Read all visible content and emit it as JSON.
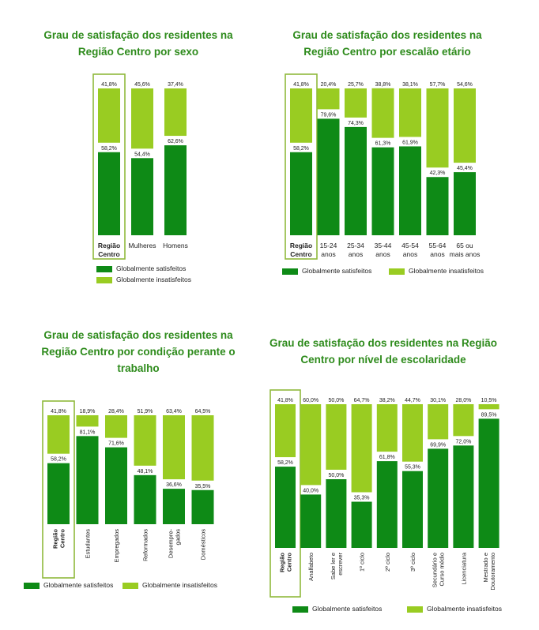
{
  "colors": {
    "satisfied": "#0e8a16",
    "unsatisfied": "#99cc22",
    "highlight_border": "#8fb93c",
    "title": "#2e8b1c"
  },
  "legend": {
    "satisfied": "Globalmente satisfeitos",
    "unsatisfied": "Globalmente insatisfeitos"
  },
  "chart_data": [
    {
      "type": "bar",
      "stacked": true,
      "title_lines": [
        "Grau de satisfação dos residentes na",
        "Região Centro por sexo"
      ],
      "categories": [
        [
          "Região",
          "Centro"
        ],
        [
          "Mulheres"
        ],
        [
          "Homens"
        ]
      ],
      "highlight_first": true,
      "series": [
        {
          "name": "Globalmente satisfeitos",
          "values": [
            58.2,
            54.4,
            62.6
          ],
          "labels": [
            "58,2%",
            "54,4%",
            "62,6%"
          ]
        },
        {
          "name": "Globalmente insatisfeitos",
          "values": [
            41.8,
            45.6,
            37.4
          ],
          "labels": [
            "41,8%",
            "45,6%",
            "37,4%"
          ]
        }
      ],
      "ylim": [
        0,
        100
      ]
    },
    {
      "type": "bar",
      "stacked": true,
      "title_lines": [
        "Grau de satisfação dos residentes na",
        "Região Centro por escalão etário"
      ],
      "categories": [
        [
          "Região",
          "Centro"
        ],
        [
          "15-24",
          "anos"
        ],
        [
          "25-34",
          "anos"
        ],
        [
          "35-44",
          "anos"
        ],
        [
          "45-54",
          "anos"
        ],
        [
          "55-64",
          "anos"
        ],
        [
          "65 ou",
          "mais anos"
        ]
      ],
      "highlight_first": true,
      "series": [
        {
          "name": "Globalmente satisfeitos",
          "values": [
            58.2,
            79.6,
            74.3,
            61.3,
            61.9,
            42.3,
            45.4
          ],
          "labels": [
            "58,2%",
            "79,6%",
            "74,3%",
            "61,3%",
            "61,9%",
            "42,3%",
            "45,4%"
          ]
        },
        {
          "name": "Globalmente insatisfeitos",
          "values": [
            41.8,
            20.4,
            25.7,
            38.8,
            38.1,
            57.7,
            54.6
          ],
          "labels": [
            "41,8%",
            "20,4%",
            "25,7%",
            "38,8%",
            "38,1%",
            "57,7%",
            "54,6%"
          ]
        }
      ],
      "ylim": [
        0,
        100
      ]
    },
    {
      "type": "bar",
      "stacked": true,
      "title_lines": [
        "Grau de satisfação dos residentes na",
        "Região Centro por condição perante o",
        "trabalho"
      ],
      "categories": [
        [
          "Região",
          "Centro"
        ],
        [
          "Estudantes"
        ],
        [
          "Empregados"
        ],
        [
          "Reformados"
        ],
        [
          "Desempre-",
          "gados"
        ],
        [
          "Domésticos"
        ]
      ],
      "highlight_first": true,
      "series": [
        {
          "name": "Globalmente satisfeitos",
          "values": [
            58.2,
            81.1,
            71.6,
            48.1,
            36.6,
            35.5
          ],
          "labels": [
            "58,2%",
            "81,1%",
            "71,6%",
            "48,1%",
            "36,6%",
            "35,5%"
          ]
        },
        {
          "name": "Globalmente insatisfeitos",
          "values": [
            41.8,
            18.9,
            28.4,
            51.9,
            63.4,
            64.5
          ],
          "labels": [
            "41,8%",
            "18,9%",
            "28,4%",
            "51,9%",
            "63,4%",
            "64,5%"
          ]
        }
      ],
      "ylim": [
        0,
        100
      ]
    },
    {
      "type": "bar",
      "stacked": true,
      "title_lines": [
        "Grau de satisfação dos residentes na Região",
        "Centro por nível de escolaridade"
      ],
      "categories": [
        [
          "Região",
          "Centro"
        ],
        [
          "Analfabeto"
        ],
        [
          "Sabe ler e",
          "escrever"
        ],
        [
          "1º ciclo"
        ],
        [
          "2º ciclo"
        ],
        [
          "3º ciclo"
        ],
        [
          "Secundário e",
          "Curso médio"
        ],
        [
          "Licenciatura"
        ],
        [
          "Mestrado e",
          "Doutoramento"
        ]
      ],
      "highlight_first": true,
      "series": [
        {
          "name": "Globalmente satisfeitos",
          "values": [
            58.2,
            40.0,
            50.0,
            35.3,
            61.8,
            55.3,
            69.9,
            72.0,
            89.5
          ],
          "labels": [
            "58,2%",
            "40,0%",
            "50,0%",
            "35,3%",
            "61,8%",
            "55,3%",
            "69,9%",
            "72,0%",
            "89,5%"
          ]
        },
        {
          "name": "Globalmente insatisfeitos",
          "values": [
            41.8,
            60.0,
            50.0,
            64.7,
            38.2,
            44.7,
            30.1,
            28.0,
            10.5
          ],
          "labels": [
            "41,8%",
            "60,0%",
            "50,0%",
            "64,7%",
            "38,2%",
            "44,7%",
            "30,1%",
            "28,0%",
            "10,5%"
          ]
        }
      ],
      "ylim": [
        0,
        100
      ]
    }
  ]
}
